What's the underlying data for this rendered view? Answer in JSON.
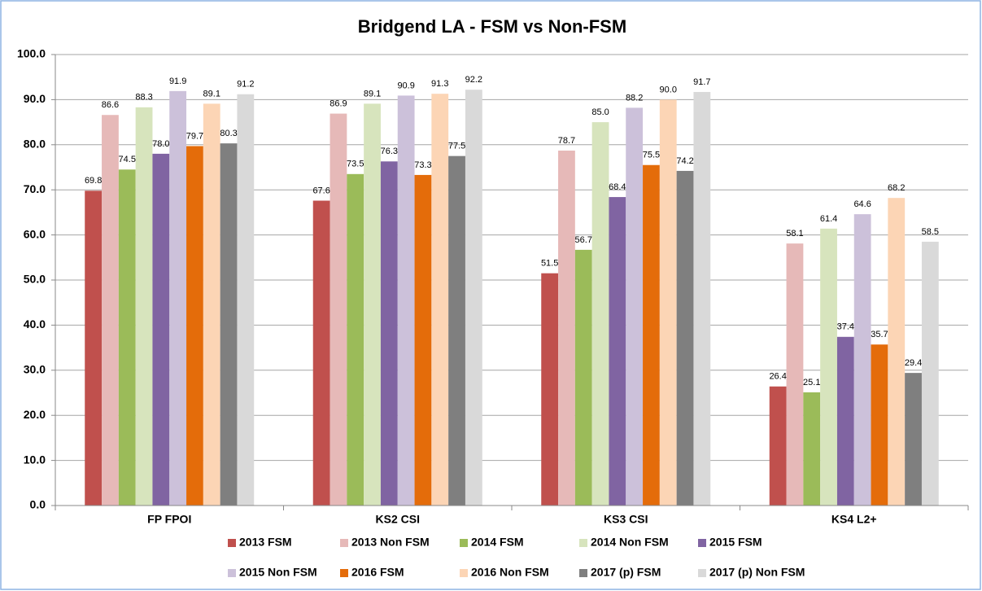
{
  "chart_data": {
    "type": "bar",
    "title": "Bridgend LA - FSM vs Non-FSM",
    "categories": [
      "FP FPOI",
      "KS2 CSI",
      "KS3 CSI",
      "KS4 L2+"
    ],
    "ylim": [
      0,
      100
    ],
    "yticks": [
      {
        "value": 0,
        "label": "0.0"
      },
      {
        "value": 10,
        "label": "10.0"
      },
      {
        "value": 20,
        "label": "20.0"
      },
      {
        "value": 30,
        "label": "30.0"
      },
      {
        "value": 40,
        "label": "40.0"
      },
      {
        "value": 50,
        "label": "50.0"
      },
      {
        "value": 60,
        "label": "60.0"
      },
      {
        "value": 70,
        "label": "70.0"
      },
      {
        "value": 80,
        "label": "80.0"
      },
      {
        "value": 90,
        "label": "90.0"
      },
      {
        "value": 100,
        "label": "100.0"
      }
    ],
    "grid": true,
    "legend": "bottom",
    "series": [
      {
        "name": "2013 FSM",
        "color": "#c0504d",
        "values": [
          69.8,
          67.6,
          51.5,
          26.4
        ],
        "value_labels": [
          "69.8",
          "67.6",
          "51.5",
          "26.4"
        ]
      },
      {
        "name": "2013 Non FSM",
        "color": "#e6b9b8",
        "values": [
          86.6,
          86.9,
          78.7,
          58.1
        ],
        "value_labels": [
          "86.6",
          "86.9",
          "78.7",
          "58.1"
        ]
      },
      {
        "name": "2014 FSM",
        "color": "#9bbb59",
        "values": [
          74.5,
          73.5,
          56.7,
          25.1
        ],
        "value_labels": [
          "74.5",
          "73.5",
          "56.7",
          "25.1"
        ]
      },
      {
        "name": "2014 Non FSM",
        "color": "#d7e4bd",
        "values": [
          88.3,
          89.1,
          85.0,
          61.4
        ],
        "value_labels": [
          "88.3",
          "89.1",
          "85.0",
          "61.4"
        ]
      },
      {
        "name": "2015 FSM",
        "color": "#8064a2",
        "values": [
          78.0,
          76.3,
          68.4,
          37.4
        ],
        "value_labels": [
          "78.0",
          "76.3",
          "68.4",
          "37.4"
        ]
      },
      {
        "name": "2015 Non FSM",
        "color": "#ccc1da",
        "values": [
          91.9,
          90.9,
          88.2,
          64.6
        ],
        "value_labels": [
          "91.9",
          "90.9",
          "88.2",
          "64.6"
        ]
      },
      {
        "name": "2016 FSM",
        "color": "#e46c0a",
        "values": [
          79.7,
          73.3,
          75.5,
          35.7
        ],
        "value_labels": [
          "79.7",
          "73.3",
          "75.5",
          "35.7"
        ]
      },
      {
        "name": "2016 Non FSM",
        "color": "#fcd5b5",
        "values": [
          89.1,
          91.3,
          90.0,
          68.2
        ],
        "value_labels": [
          "89.1",
          "91.3",
          "90.0",
          "68.2"
        ]
      },
      {
        "name": "2017 (p) FSM",
        "color": "#7f7f7f",
        "values": [
          80.3,
          77.5,
          74.2,
          29.4
        ],
        "value_labels": [
          "80.3",
          "77.5",
          "74.2",
          "29.4"
        ]
      },
      {
        "name": "2017 (p) Non FSM",
        "color": "#d9d9d9",
        "values": [
          91.2,
          92.2,
          91.7,
          58.5
        ],
        "value_labels": [
          "91.2",
          "92.2",
          "91.7",
          "58.5"
        ]
      }
    ]
  }
}
